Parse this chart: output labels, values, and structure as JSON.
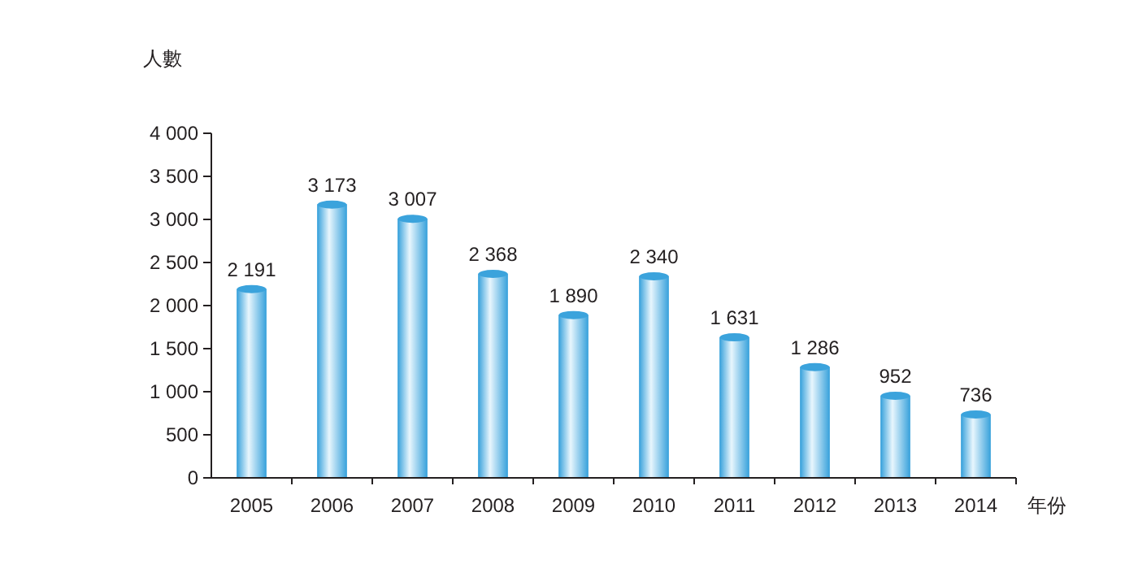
{
  "chart_data": {
    "type": "bar",
    "ylabel": "人數",
    "xlabel": "年份",
    "categories": [
      "2005",
      "2006",
      "2007",
      "2008",
      "2009",
      "2010",
      "2011",
      "2012",
      "2013",
      "2014"
    ],
    "values": [
      2191,
      3173,
      3007,
      2368,
      1890,
      2340,
      1631,
      1286,
      952,
      736
    ],
    "value_labels": [
      "2 191",
      "3 173",
      "3 007",
      "2 368",
      "1 890",
      "2 340",
      "1 631",
      "1 286",
      "952",
      "736"
    ],
    "color": "#3ba3dc",
    "ylim": [
      0,
      4000
    ],
    "yticks": [
      {
        "value": 0,
        "label": "0"
      },
      {
        "value": 500,
        "label": "500"
      },
      {
        "value": 1000,
        "label": "1 000"
      },
      {
        "value": 1500,
        "label": "1 500"
      },
      {
        "value": 2000,
        "label": "2 000"
      },
      {
        "value": 2500,
        "label": "2 500"
      },
      {
        "value": 3000,
        "label": "3 000"
      },
      {
        "value": 3500,
        "label": "3 500"
      },
      {
        "value": 4000,
        "label": "4 000"
      }
    ],
    "grid": false
  }
}
